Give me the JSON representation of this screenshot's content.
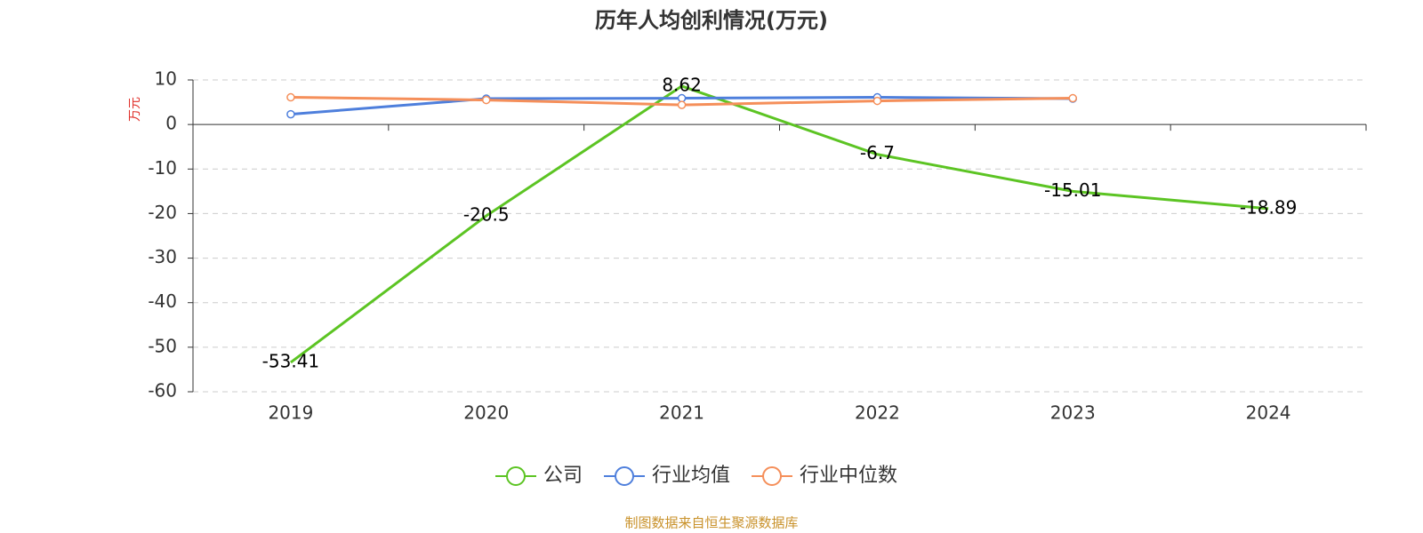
{
  "chart_data": {
    "type": "line",
    "title": "历年人均创利情况(万元)",
    "y_label": "万元",
    "categories": [
      "2019",
      "2020",
      "2021",
      "2022",
      "2023",
      "2024"
    ],
    "series": [
      {
        "name": "公司",
        "color": "#5cc423",
        "values": [
          -53.41,
          -20.5,
          8.62,
          -6.7,
          -15.01,
          -18.89
        ],
        "show_labels": true
      },
      {
        "name": "行业均值",
        "color": "#4e7fdc",
        "values": [
          2.3,
          5.8,
          5.9,
          6.1,
          5.8,
          null
        ]
      },
      {
        "name": "行业中位数",
        "color": "#f58f5a",
        "values": [
          6.1,
          5.5,
          4.4,
          5.3,
          5.9,
          null
        ]
      }
    ],
    "ylim": [
      -60,
      10
    ],
    "yticks": [
      -60,
      -50,
      -40,
      -30,
      -20,
      -10,
      0,
      10
    ],
    "grid": true,
    "legend": "bottom",
    "source": "制图数据来自恒生聚源数据库"
  }
}
